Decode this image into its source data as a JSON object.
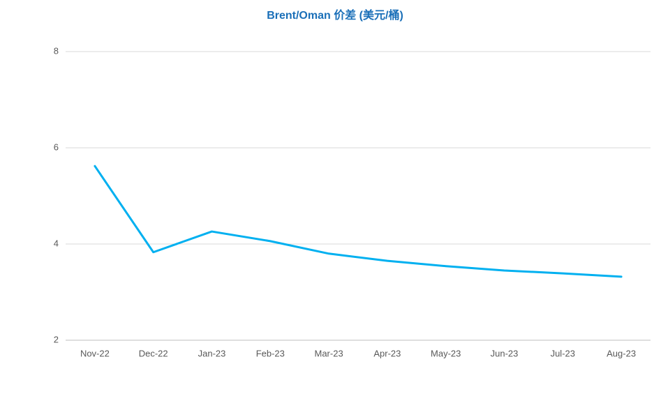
{
  "chart_data": {
    "type": "line",
    "title": "Brent/Oman 价差 (美元/桶)",
    "categories": [
      "Nov-22",
      "Dec-22",
      "Jan-23",
      "Feb-23",
      "Mar-23",
      "Apr-23",
      "May-23",
      "Jun-23",
      "Jul-23",
      "Aug-23"
    ],
    "series": [
      {
        "name": "Brent/Oman",
        "color": "#00b0f0",
        "values": [
          5.62,
          3.83,
          4.26,
          4.06,
          3.8,
          3.65,
          3.54,
          3.45,
          3.39,
          3.32
        ]
      }
    ],
    "ylim": [
      2,
      8
    ],
    "yticks": [
      2,
      4,
      6,
      8
    ],
    "grid": true
  }
}
